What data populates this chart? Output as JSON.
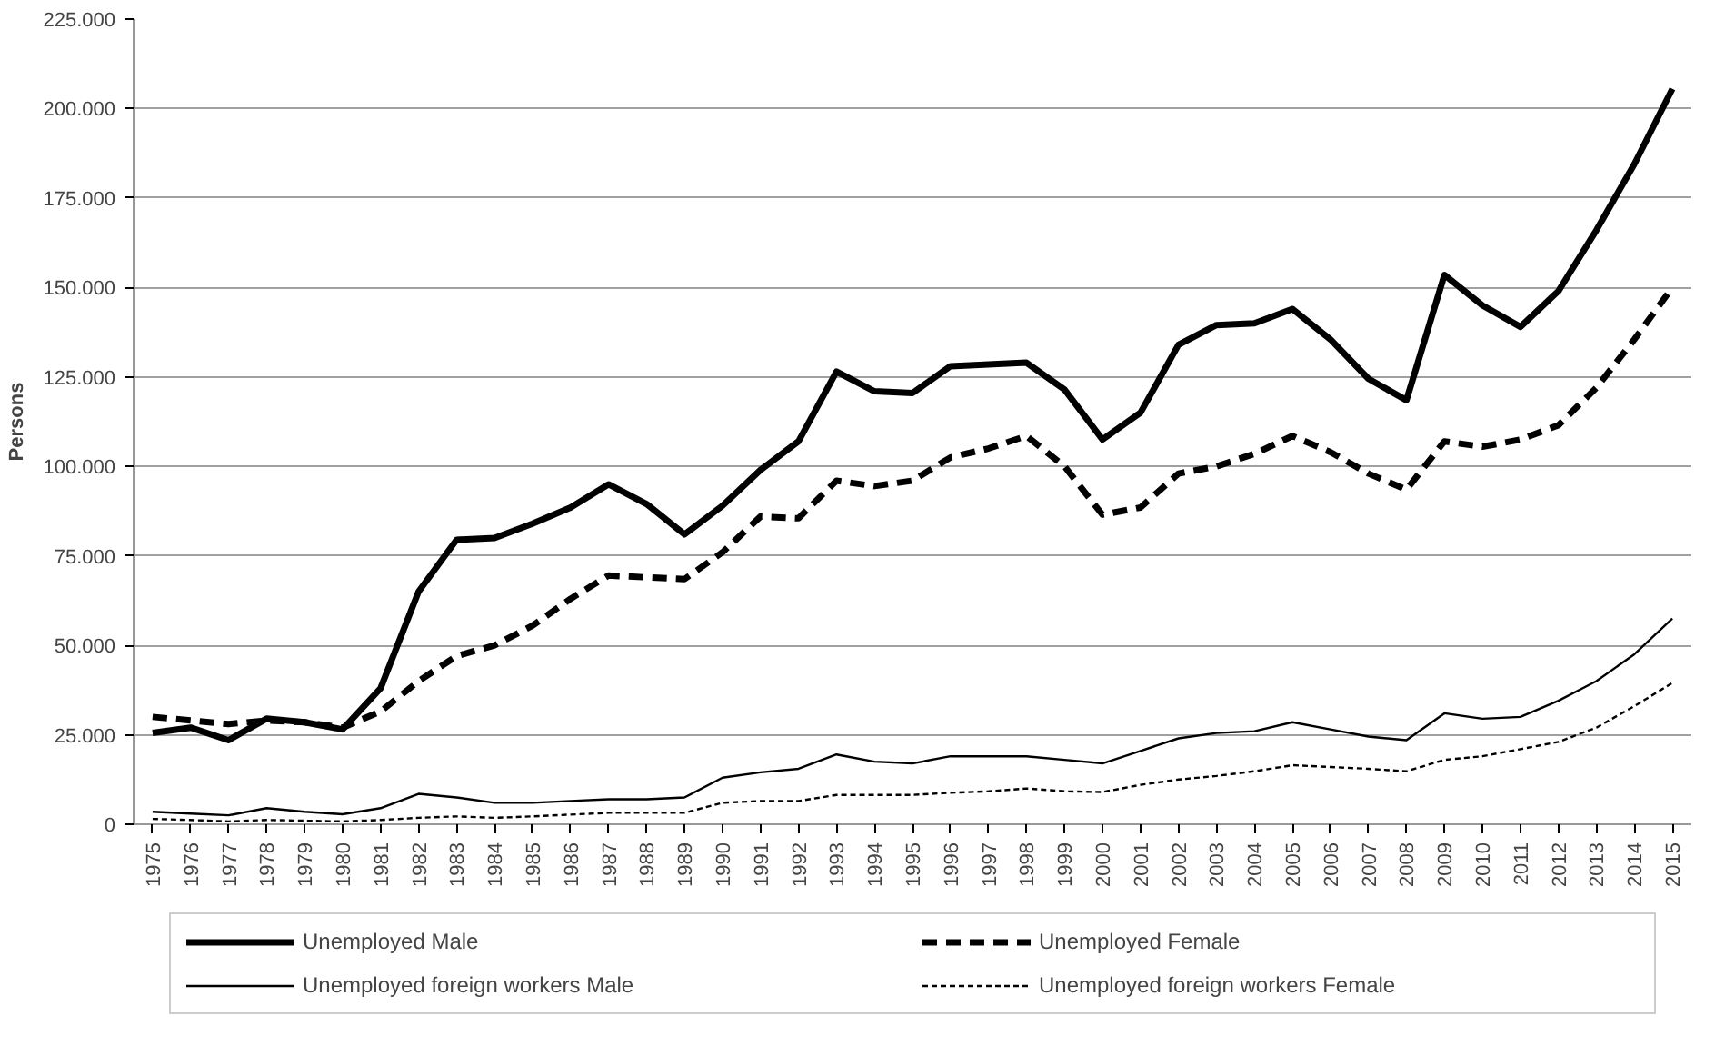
{
  "chart_data": {
    "type": "line",
    "ylabel": "Persons",
    "categories": [
      "1975",
      "1976",
      "1977",
      "1978",
      "1979",
      "1980",
      "1981",
      "1982",
      "1983",
      "1984",
      "1985",
      "1986",
      "1987",
      "1988",
      "1989",
      "1990",
      "1991",
      "1992",
      "1993",
      "1994",
      "1995",
      "1996",
      "1997",
      "1998",
      "1999",
      "2000",
      "2001",
      "2002",
      "2003",
      "2004",
      "2005",
      "2006",
      "2007",
      "2008",
      "2009",
      "2010",
      "2011",
      "2012",
      "2013",
      "2014",
      "2015"
    ],
    "series": [
      {
        "name": "Unemployed Male",
        "color": "#000000",
        "line_style": "solid",
        "values": [
          25500,
          27000,
          23500,
          29500,
          28500,
          26500,
          38000,
          65000,
          79500,
          80000,
          84000,
          88500,
          95000,
          89500,
          81000,
          89000,
          99000,
          107000,
          126500,
          121000,
          120500,
          128000,
          128500,
          129000,
          121500,
          107500,
          115000,
          134000,
          139500,
          140000,
          144000,
          135500,
          124500,
          118500,
          153500,
          145000,
          139000,
          149000,
          166000,
          184500,
          205500
        ]
      },
      {
        "name": "Unemployed Female",
        "color": "#000000",
        "line_style": "dashed",
        "values": [
          30000,
          29000,
          28000,
          29000,
          28500,
          27000,
          31500,
          40000,
          47000,
          50000,
          55500,
          63000,
          69500,
          69000,
          68500,
          76000,
          86000,
          85500,
          96000,
          94500,
          96000,
          102500,
          105000,
          108500,
          100000,
          86500,
          88500,
          98000,
          100000,
          103500,
          108500,
          104000,
          98000,
          93500,
          107000,
          105500,
          107500,
          111500,
          122000,
          135500,
          150000
        ]
      },
      {
        "name": "Unemployed foreign workers Male",
        "color": "#000000",
        "line_style": "solid",
        "values": [
          3500,
          3000,
          2500,
          4500,
          3500,
          2800,
          4500,
          8500,
          7500,
          6000,
          6000,
          6500,
          7000,
          7000,
          7500,
          13000,
          14500,
          15500,
          19500,
          17500,
          17000,
          19000,
          19000,
          19000,
          18000,
          17000,
          20500,
          24000,
          25500,
          26000,
          28500,
          26500,
          24500,
          23500,
          31000,
          29500,
          30000,
          34500,
          40000,
          47500,
          57500
        ]
      },
      {
        "name": "Unemployed foreign workers Female",
        "color": "#000000",
        "line_style": "dotted",
        "values": [
          1500,
          1200,
          800,
          1200,
          1000,
          800,
          1200,
          1800,
          2200,
          1800,
          2200,
          2700,
          3200,
          3200,
          3200,
          6000,
          6500,
          6500,
          8200,
          8200,
          8200,
          8800,
          9200,
          10000,
          9200,
          9000,
          11000,
          12500,
          13500,
          14800,
          16500,
          16000,
          15500,
          14800,
          18000,
          19000,
          21000,
          23000,
          27000,
          33000,
          39500
        ]
      }
    ],
    "ylim": [
      0,
      225000
    ],
    "yticks": [
      0,
      {
        "value": 25000,
        "label": "25.000"
      },
      {
        "value": 50000,
        "label": "50.000"
      },
      {
        "value": 75000,
        "label": "75.000"
      },
      {
        "value": 100000,
        "label": "100.000"
      },
      {
        "value": 125000,
        "label": "125.000"
      },
      {
        "value": 150000,
        "label": "150.000"
      },
      {
        "value": 175000,
        "label": "175.000"
      },
      {
        "value": 200000,
        "label": "200.000"
      },
      {
        "value": 225000,
        "label": "225.000"
      }
    ],
    "grid": "y",
    "legend": "bottom"
  }
}
